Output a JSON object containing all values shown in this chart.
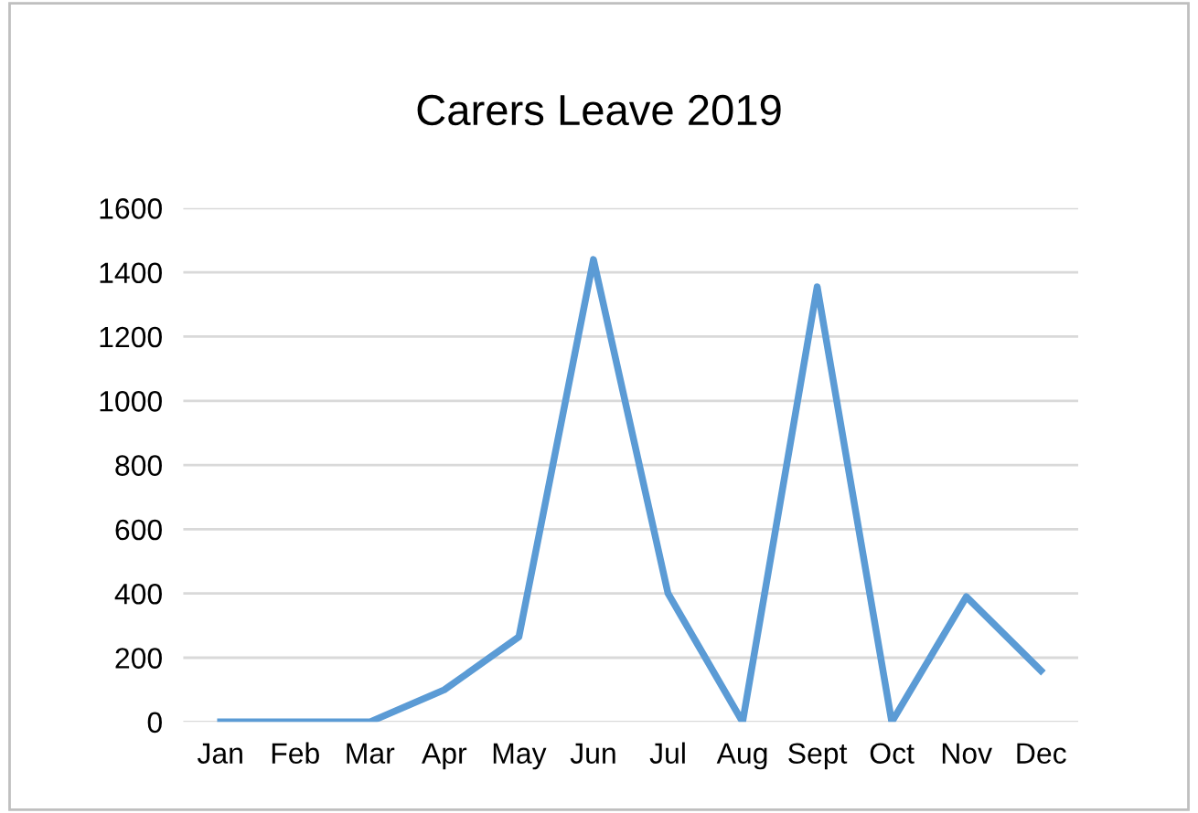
{
  "chart_data": {
    "type": "line",
    "title": "Carers Leave 2019",
    "categories": [
      "Jan",
      "Feb",
      "Mar",
      "Apr",
      "May",
      "Jun",
      "Jul",
      "Aug",
      "Sept",
      "Oct",
      "Nov",
      "Dec"
    ],
    "series": [
      {
        "color": "#5b9bd5",
        "values": [
          0,
          0,
          0,
          100,
          265,
          1440,
          400,
          0,
          1355,
          0,
          390,
          160
        ]
      }
    ],
    "ylim": [
      0,
      1600
    ],
    "yticks": [
      0,
      200,
      400,
      600,
      800,
      1000,
      1200,
      1400,
      1600
    ],
    "grid": "y",
    "marker": "none",
    "line_style": "solid",
    "legend": false
  }
}
